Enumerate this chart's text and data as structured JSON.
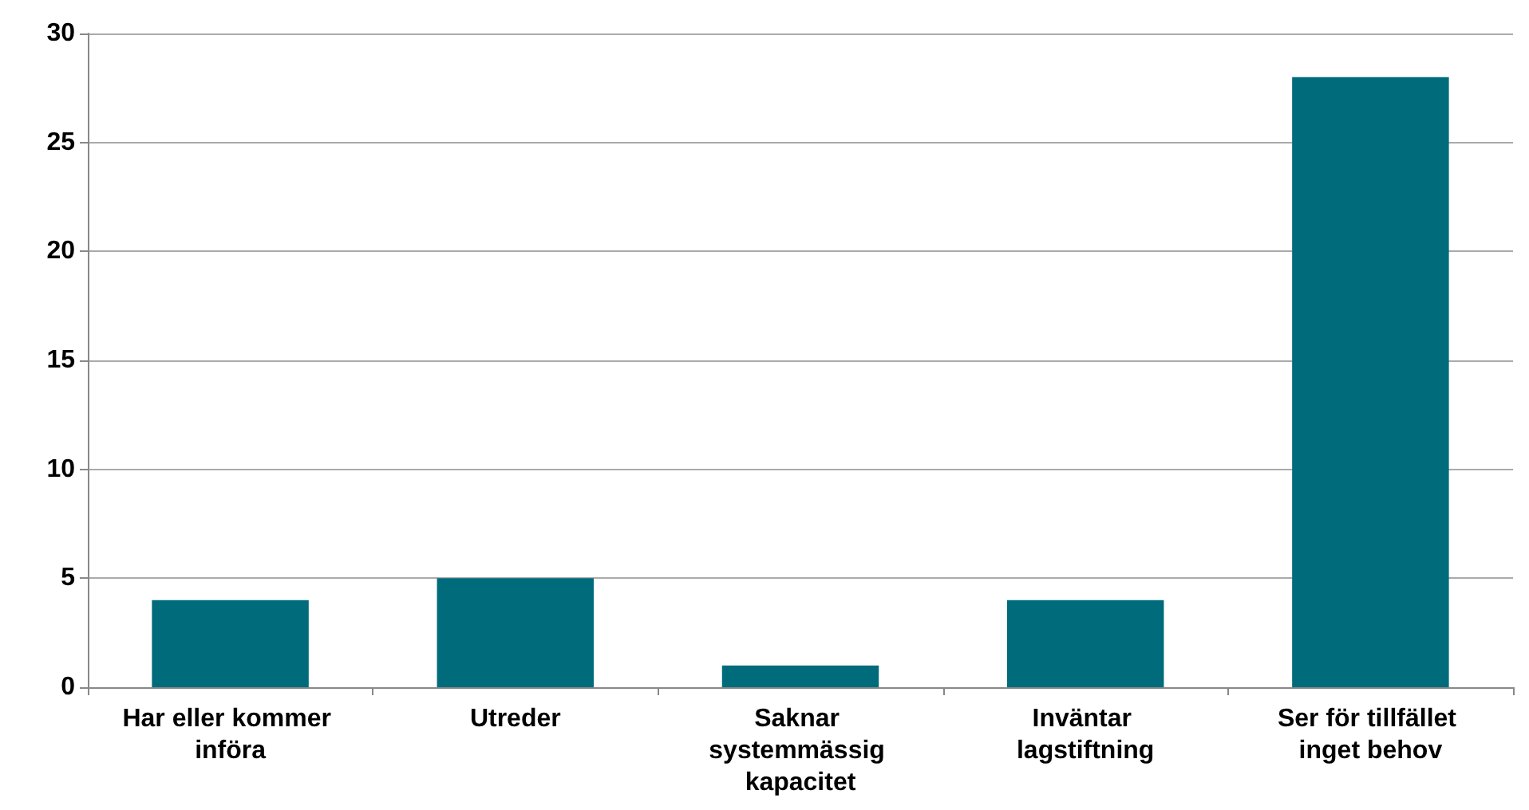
{
  "chart_data": {
    "type": "bar",
    "categories": [
      "Har eller kommer införa",
      "Utreder",
      "Saknar systemmässig kapacitet",
      "Inväntar lagstiftning",
      "Ser för tillfället inget behov"
    ],
    "values": [
      4,
      5,
      1,
      4,
      28
    ],
    "color": "#006b7b",
    "ylim": [
      0,
      30
    ],
    "yticks": [
      0,
      5,
      10,
      15,
      20,
      25,
      30
    ],
    "grid": "y"
  }
}
